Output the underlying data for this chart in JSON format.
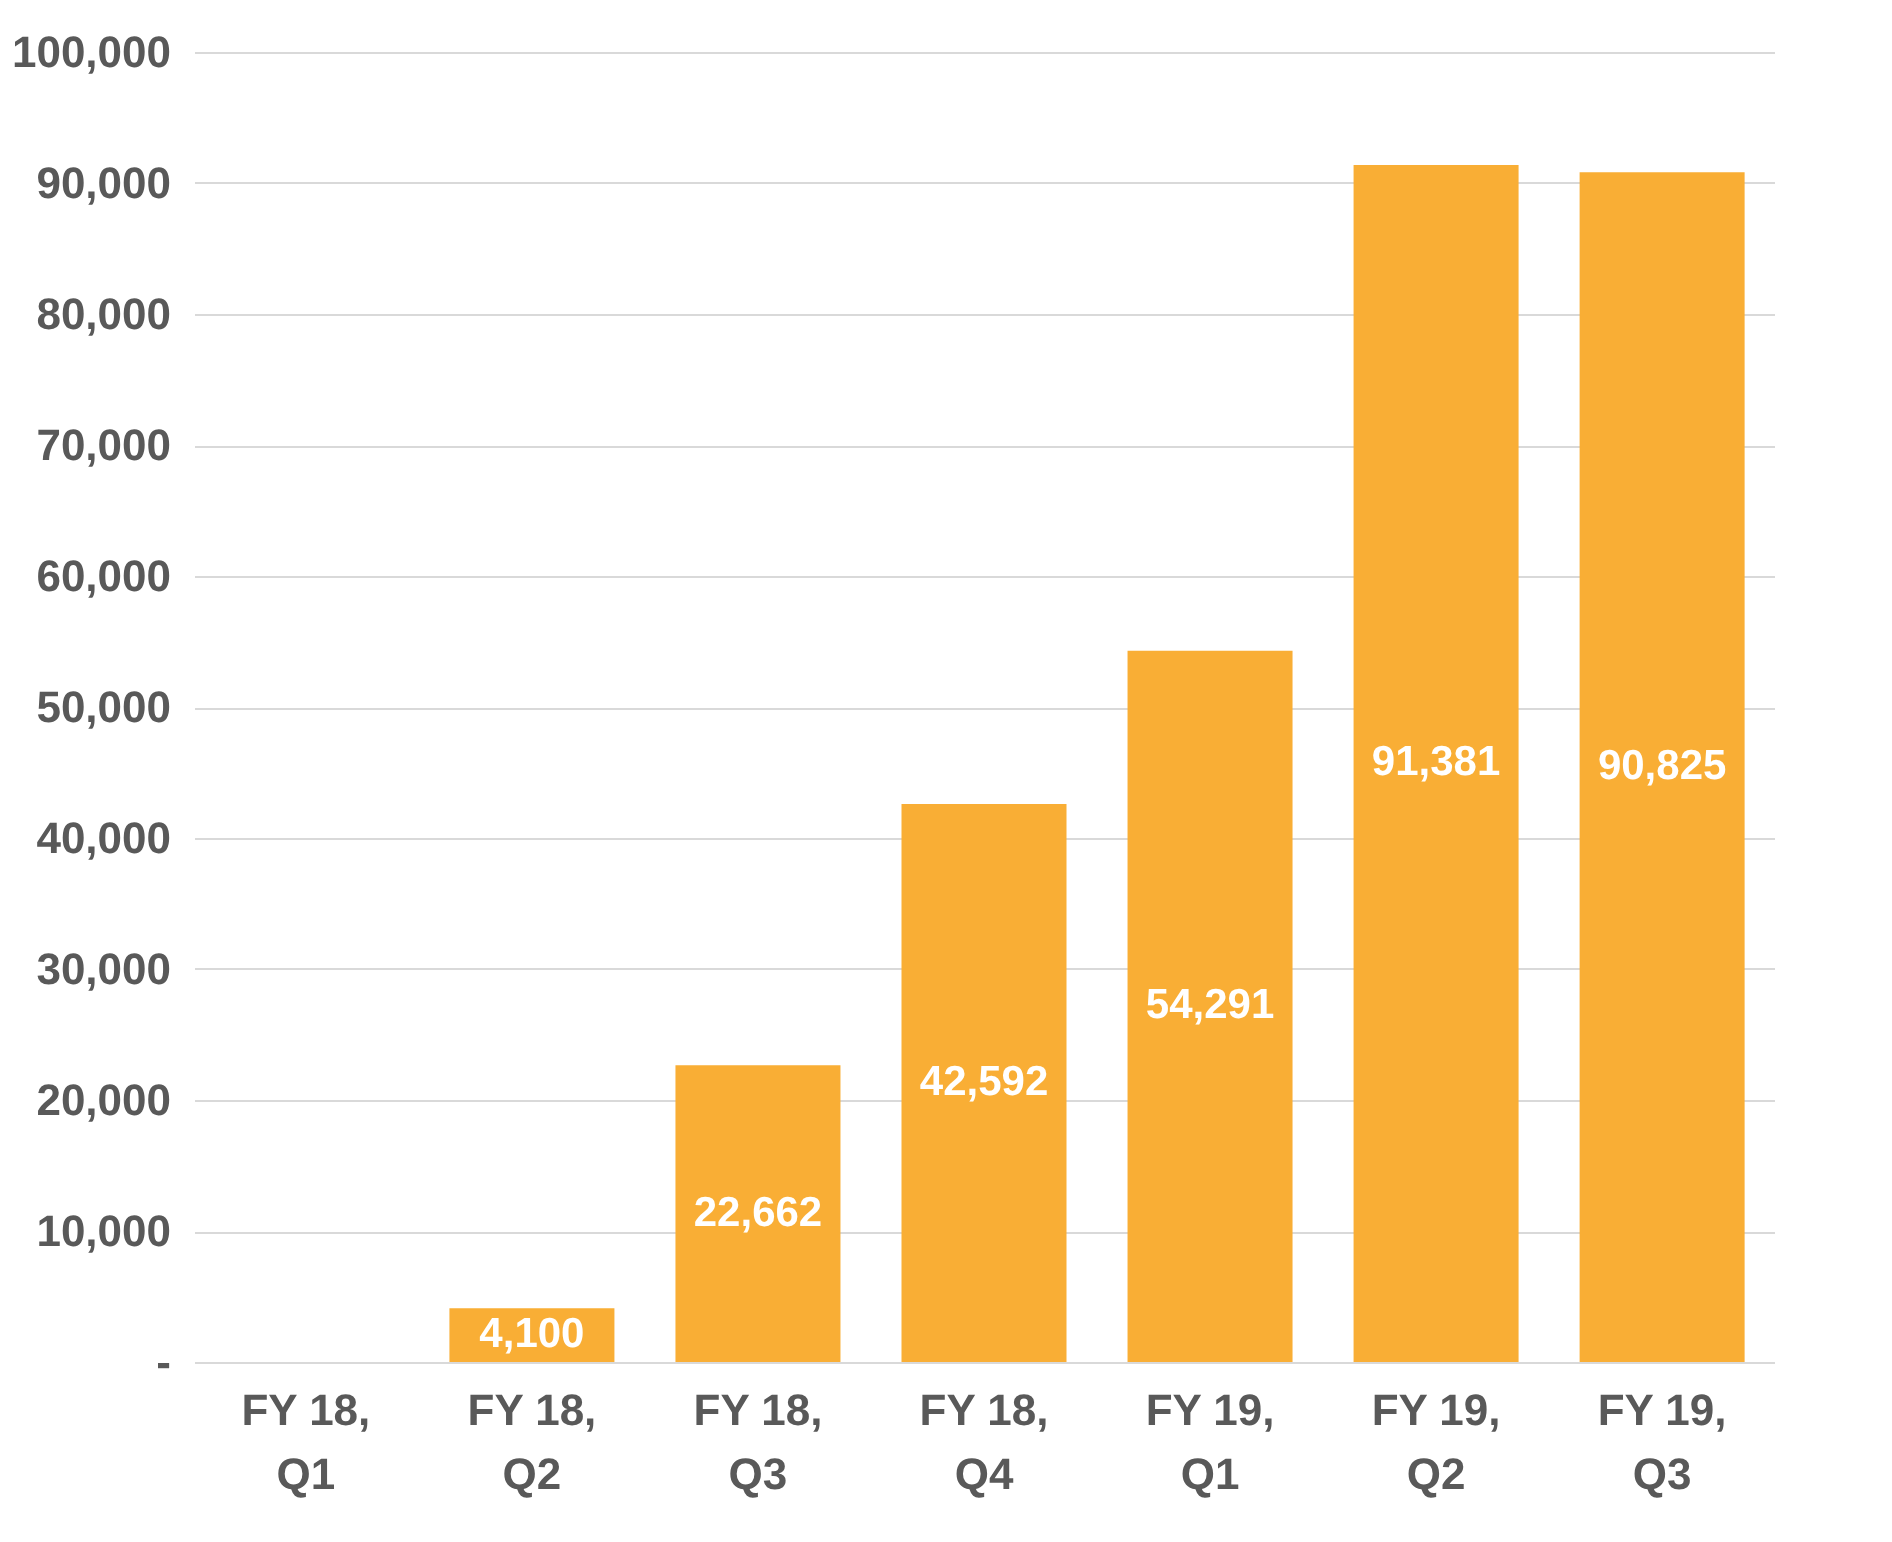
{
  "chart_data": {
    "type": "bar",
    "categories": [
      "FY 18, Q1",
      "FY 18, Q2",
      "FY 18, Q3",
      "FY 18, Q4",
      "FY 19, Q1",
      "FY 19, Q2",
      "FY 19, Q3"
    ],
    "values": [
      0,
      4100,
      22662,
      42592,
      54291,
      91381,
      90825
    ],
    "value_labels": [
      null,
      "4,100",
      "22,662",
      "42,592",
      "54,291",
      "91,381",
      "90,825"
    ],
    "color": "#f9ae35",
    "ylim": [
      0,
      100000
    ],
    "yticks": [
      {
        "value": 0,
        "label": "-"
      },
      {
        "value": 10000,
        "label": "10,000"
      },
      {
        "value": 20000,
        "label": "20,000"
      },
      {
        "value": 30000,
        "label": "30,000"
      },
      {
        "value": 40000,
        "label": "40,000"
      },
      {
        "value": 50000,
        "label": "50,000"
      },
      {
        "value": 60000,
        "label": "60,000"
      },
      {
        "value": 70000,
        "label": "70,000"
      },
      {
        "value": 80000,
        "label": "80,000"
      },
      {
        "value": 90000,
        "label": "90,000"
      },
      {
        "value": 100000,
        "label": "100,000"
      }
    ],
    "grid": "y"
  }
}
